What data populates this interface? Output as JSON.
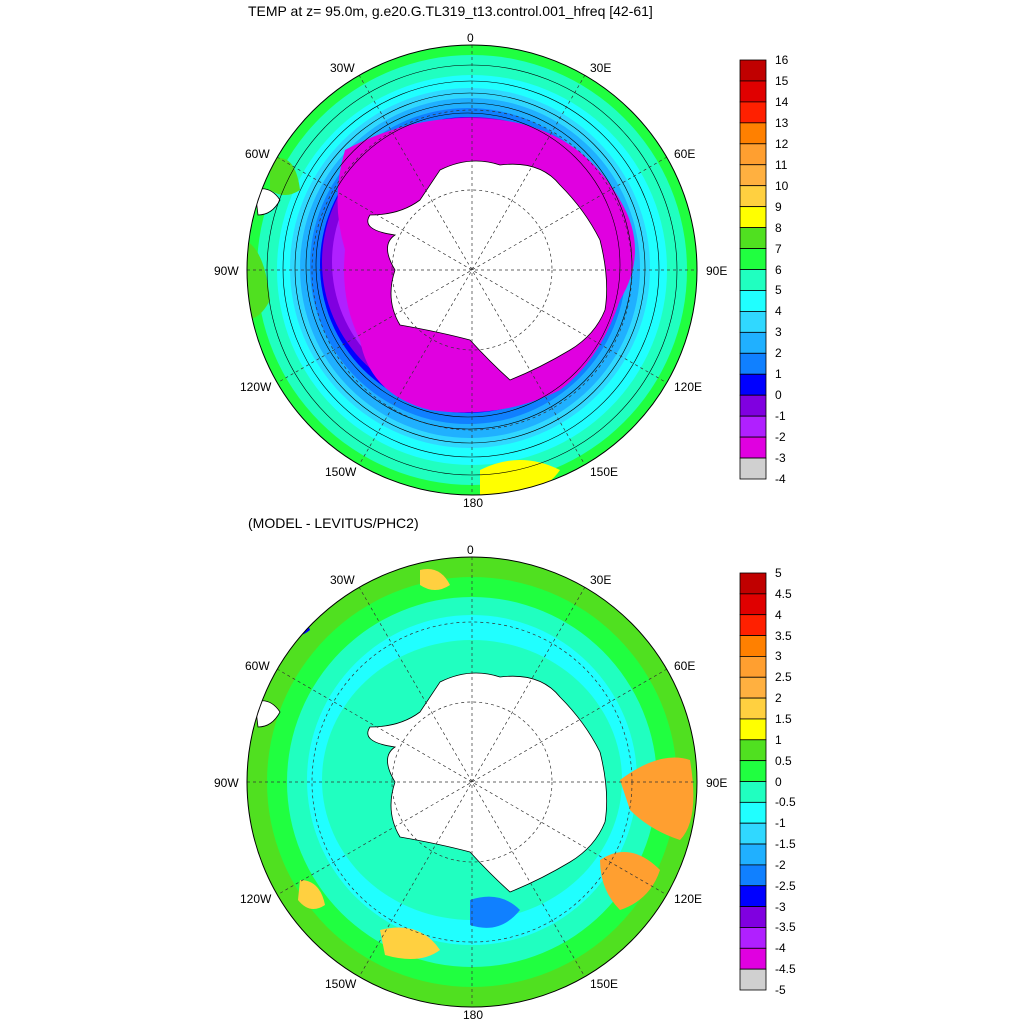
{
  "panel_top": {
    "title": "TEMP at z=  95.0m, g.e20.G.TL319_t13.control.001_hfreq [42-61]",
    "longitude_labels": {
      "top": "0",
      "upper_left": "30W",
      "upper_right": "30E",
      "left_upper": "60W",
      "right_upper": "60E",
      "left": "90W",
      "right": "90E",
      "left_lower": "120W",
      "right_lower": "120E",
      "lower_left": "150W",
      "lower_right": "150E",
      "bottom": "180"
    },
    "colorbar_labels": [
      "16",
      "15",
      "14",
      "13",
      "12",
      "11",
      "10",
      "9",
      "8",
      "7",
      "6",
      "5",
      "4",
      "3",
      "2",
      "1",
      "0",
      "-1",
      "-2",
      "-3",
      "-4"
    ],
    "colorbar_colors": [
      "#c00000",
      "#e00000",
      "#ff2000",
      "#ff8000",
      "#ff9f30",
      "#ffb040",
      "#ffd040",
      "#ffff00",
      "#50e020",
      "#20ff40",
      "#20ffc0",
      "#20ffff",
      "#30d8ff",
      "#20b0ff",
      "#1080ff",
      "#0000ff",
      "#8000e0",
      "#b020ff",
      "#e000e0",
      "#d0d0d0",
      "#707070"
    ]
  },
  "panel_bottom": {
    "title": "(MODEL - LEVITUS/PHC2)",
    "longitude_labels": {
      "top": "0",
      "upper_left": "30W",
      "upper_right": "30E",
      "left_upper": "60W",
      "right_upper": "60E",
      "left": "90W",
      "right": "90E",
      "left_lower": "120W",
      "right_lower": "120E",
      "lower_left": "150W",
      "lower_right": "150E",
      "bottom": "180"
    },
    "colorbar_labels": [
      "5",
      "4.5",
      "4",
      "3.5",
      "3",
      "2.5",
      "2",
      "1.5",
      "1",
      "0.5",
      "0",
      "-0.5",
      "-1",
      "-1.5",
      "-2",
      "-2.5",
      "-3",
      "-3.5",
      "-4",
      "-4.5",
      "-5"
    ],
    "colorbar_colors": [
      "#c00000",
      "#e00000",
      "#ff2000",
      "#ff8000",
      "#ff9f30",
      "#ffb040",
      "#ffd040",
      "#ffff00",
      "#50e020",
      "#20ff40",
      "#20ffc0",
      "#20ffff",
      "#30d8ff",
      "#20b0ff",
      "#1080ff",
      "#0000ff",
      "#8000e0",
      "#b020ff",
      "#e000e0",
      "#d0d0d0",
      "#707070"
    ]
  },
  "colors": {
    "land": "#ffffff",
    "coastline": "#000000"
  }
}
